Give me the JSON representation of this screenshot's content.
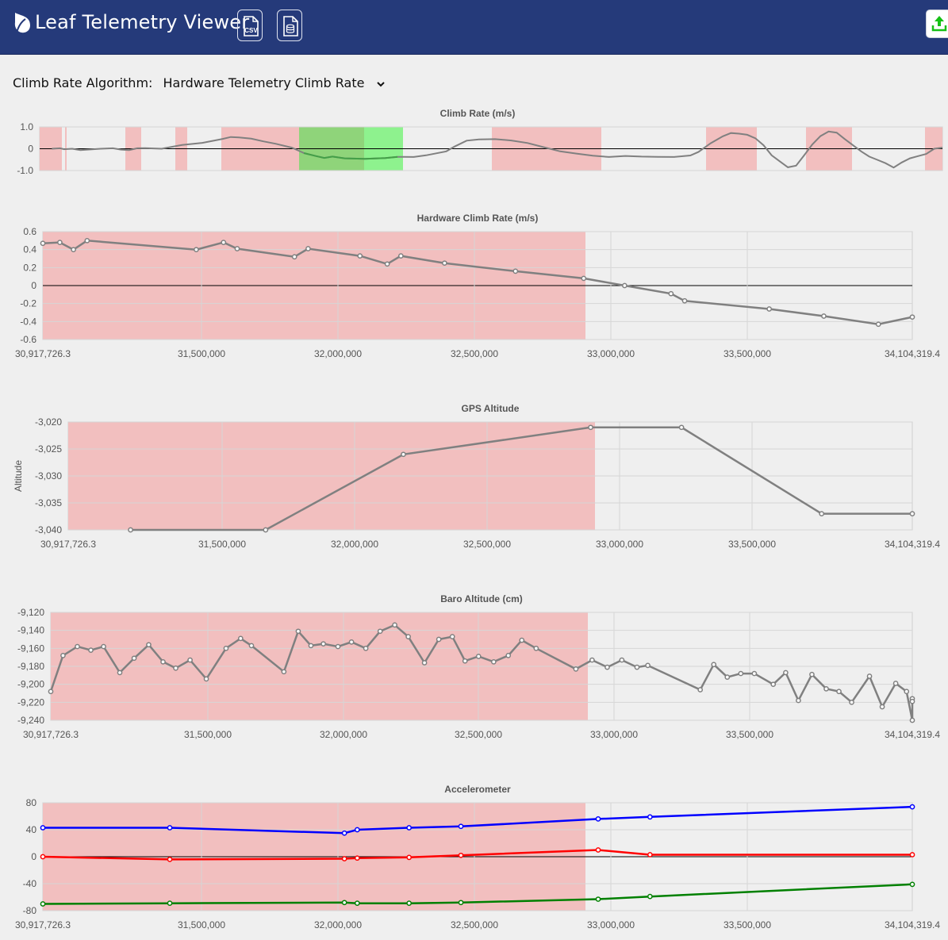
{
  "header": {
    "title": "Leaf Telemetry Viewer",
    "csv_icon": "csv-file-icon",
    "db_icon": "database-file-icon",
    "upload_icon": "upload-icon"
  },
  "algorithm": {
    "label": "Climb Rate Algorithm:",
    "selected": "Hardware Telemetry Climb Rate"
  },
  "colors": {
    "header": "#253a7a",
    "highlight": "#f2bfbf",
    "selection_dark": "#8fd47a",
    "selection_light": "#8ef28e",
    "line": "#808080"
  },
  "charts": [
    {
      "type": "line",
      "title": "Climb Rate (m/s)",
      "ylabel": "",
      "yticks": [
        "1.0",
        "0",
        "-1.0"
      ],
      "ylim": [
        -1.0,
        1.0
      ],
      "xticks": [],
      "series": [
        {
          "color": "#808080",
          "points": [
            [
              0.03,
              0.0
            ],
            [
              0.05,
              0.02
            ],
            [
              0.06,
              -0.02
            ],
            [
              0.08,
              0.0
            ],
            [
              0.1,
              -0.06
            ],
            [
              0.15,
              0.0
            ],
            [
              0.18,
              0.02
            ],
            [
              0.2,
              -0.04
            ],
            [
              0.22,
              -0.06
            ],
            [
              0.24,
              0.02
            ],
            [
              0.26,
              0.03
            ],
            [
              0.3,
              0.0
            ],
            [
              0.35,
              0.17
            ],
            [
              0.4,
              0.27
            ],
            [
              0.45,
              0.45
            ],
            [
              0.47,
              0.54
            ],
            [
              0.49,
              0.52
            ],
            [
              0.52,
              0.46
            ],
            [
              0.55,
              0.34
            ],
            [
              0.58,
              0.23
            ],
            [
              0.62,
              0.05
            ],
            [
              0.65,
              -0.2
            ],
            [
              0.68,
              -0.34
            ],
            [
              0.7,
              -0.42
            ],
            [
              0.72,
              -0.36
            ],
            [
              0.75,
              -0.44
            ],
            [
              0.8,
              -0.46
            ],
            [
              0.85,
              -0.43
            ],
            [
              0.88,
              -0.37
            ],
            [
              0.92,
              -0.38
            ],
            [
              0.95,
              -0.3
            ],
            [
              1.0,
              -0.12
            ],
            [
              1.02,
              0.1
            ],
            [
              1.05,
              0.37
            ],
            [
              1.08,
              0.43
            ],
            [
              1.12,
              0.44
            ],
            [
              1.16,
              0.38
            ],
            [
              1.2,
              0.26
            ],
            [
              1.24,
              0.07
            ],
            [
              1.28,
              -0.12
            ],
            [
              1.32,
              -0.22
            ],
            [
              1.36,
              -0.32
            ],
            [
              1.4,
              -0.38
            ],
            [
              1.44,
              -0.33
            ],
            [
              1.48,
              -0.36
            ],
            [
              1.52,
              -0.37
            ],
            [
              1.56,
              -0.38
            ],
            [
              1.6,
              -0.31
            ],
            [
              1.62,
              -0.15
            ],
            [
              1.65,
              0.25
            ],
            [
              1.68,
              0.57
            ],
            [
              1.7,
              0.72
            ],
            [
              1.72,
              0.69
            ],
            [
              1.74,
              0.64
            ],
            [
              1.76,
              0.48
            ],
            [
              1.78,
              0.16
            ],
            [
              1.8,
              -0.3
            ],
            [
              1.82,
              -0.58
            ],
            [
              1.84,
              -0.85
            ],
            [
              1.86,
              -0.78
            ],
            [
              1.88,
              -0.3
            ],
            [
              1.9,
              0.2
            ],
            [
              1.92,
              0.58
            ],
            [
              1.94,
              0.79
            ],
            [
              1.96,
              0.74
            ],
            [
              1.98,
              0.44
            ],
            [
              2.0,
              0.16
            ],
            [
              2.02,
              -0.12
            ],
            [
              2.04,
              -0.36
            ],
            [
              2.06,
              -0.51
            ],
            [
              2.08,
              -0.66
            ],
            [
              2.1,
              -0.86
            ],
            [
              2.12,
              -0.63
            ],
            [
              2.14,
              -0.44
            ],
            [
              2.16,
              -0.34
            ],
            [
              2.18,
              -0.24
            ],
            [
              2.2,
              0.0
            ],
            [
              2.22,
              0.05
            ]
          ]
        }
      ],
      "x_range": [
        0.0,
        2.22
      ]
    },
    {
      "type": "line",
      "title": "Hardware Climb Rate (m/s)",
      "ylabel": "",
      "yticks": [
        "0.6",
        "0.4",
        "0.2",
        "0",
        "-0.2",
        "-0.4",
        "-0.6"
      ],
      "ylim": [
        -0.6,
        0.6
      ],
      "xticks": [
        "30,917,726.3",
        "31,500,000",
        "32,000,000",
        "32,500,000",
        "33,000,000",
        "33,500,000",
        "34,104,319.4"
      ],
      "series": [
        {
          "color": "#808080",
          "points": [
            [
              30917726.3,
              0.47
            ],
            [
              30980000,
              0.48
            ],
            [
              31030000,
              0.4
            ],
            [
              31080000,
              0.5
            ],
            [
              31480000,
              0.4
            ],
            [
              31580000,
              0.48
            ],
            [
              31630000,
              0.41
            ],
            [
              31840000,
              0.32
            ],
            [
              31890000,
              0.41
            ],
            [
              32080000,
              0.33
            ],
            [
              32180000,
              0.24
            ],
            [
              32230000,
              0.33
            ],
            [
              32390000,
              0.25
            ],
            [
              32650000,
              0.16
            ],
            [
              32900000,
              0.08
            ],
            [
              33050000,
              0.0
            ],
            [
              33220000,
              -0.09
            ],
            [
              33270000,
              -0.17
            ],
            [
              33580000,
              -0.26
            ],
            [
              33780000,
              -0.34
            ],
            [
              33980000,
              -0.43
            ],
            [
              34104319.4,
              -0.35
            ]
          ]
        }
      ]
    },
    {
      "type": "line",
      "title": "GPS Altitude",
      "ylabel": "Altitude",
      "yticks": [
        "-3,020",
        "-3,025",
        "-3,030",
        "-3,035",
        "-3,040"
      ],
      "ylim": [
        -3040,
        -3020
      ],
      "xticks": [
        "30,917,726.3",
        "31,500,000",
        "32,000,000",
        "32,500,000",
        "33,000,000",
        "33,500,000",
        "34,104,319.4"
      ],
      "series": [
        {
          "color": "#808080",
          "points": [
            [
              31153000,
              -3040
            ],
            [
              31663000,
              -3040
            ],
            [
              32183000,
              -3026
            ],
            [
              32890000,
              -3021
            ],
            [
              33233000,
              -3021
            ],
            [
              33762000,
              -3037
            ],
            [
              34104319.4,
              -3037
            ]
          ]
        }
      ]
    },
    {
      "type": "line",
      "title": "Baro Altitude (cm)",
      "ylabel": "",
      "yticks": [
        "-9,120",
        "-9,140",
        "-9,160",
        "-9,180",
        "-9,200",
        "-9,220",
        "-9,240"
      ],
      "ylim": [
        -9240,
        -9120
      ],
      "xticks": [
        "30,917,726.3",
        "31,500,000",
        "32,000,000",
        "32,500,000",
        "33,000,000",
        "33,500,000",
        "34,104,319.4"
      ],
      "series": [
        {
          "color": "#808080",
          "points": [
            [
              30917726.3,
              -9208
            ],
            [
              30963000,
              -9168
            ],
            [
              31016000,
              -9158
            ],
            [
              31066000,
              -9162
            ],
            [
              31113000,
              -9158
            ],
            [
              31173000,
              -9187
            ],
            [
              31226000,
              -9171
            ],
            [
              31280000,
              -9156
            ],
            [
              31333000,
              -9175
            ],
            [
              31380000,
              -9182
            ],
            [
              31433000,
              -9173
            ],
            [
              31493000,
              -9194
            ],
            [
              31566000,
              -9160
            ],
            [
              31620000,
              -9149
            ],
            [
              31660000,
              -9157
            ],
            [
              31780000,
              -9186
            ],
            [
              31833000,
              -9141
            ],
            [
              31880000,
              -9157
            ],
            [
              31926000,
              -9155
            ],
            [
              31980000,
              -9158
            ],
            [
              32030000,
              -9153
            ],
            [
              32083000,
              -9160
            ],
            [
              32136000,
              -9141
            ],
            [
              32190000,
              -9134
            ],
            [
              32240000,
              -9147
            ],
            [
              32300000,
              -9176
            ],
            [
              32353000,
              -9150
            ],
            [
              32403000,
              -9147
            ],
            [
              32450000,
              -9174
            ],
            [
              32500000,
              -9169
            ],
            [
              32556000,
              -9175
            ],
            [
              32610000,
              -9168
            ],
            [
              32660000,
              -9151
            ],
            [
              32713000,
              -9160
            ],
            [
              32860000,
              -9183
            ],
            [
              32920000,
              -9173
            ],
            [
              32976000,
              -9181
            ],
            [
              33030000,
              -9173
            ],
            [
              33086000,
              -9181
            ],
            [
              33126000,
              -9179
            ],
            [
              33320000,
              -9206
            ],
            [
              33370000,
              -9178
            ],
            [
              33420000,
              -9192
            ],
            [
              33470000,
              -9188
            ],
            [
              33520000,
              -9188
            ],
            [
              33590000,
              -9200
            ],
            [
              33636000,
              -9187
            ],
            [
              33683000,
              -9218
            ],
            [
              33733000,
              -9189
            ],
            [
              33786000,
              -9205
            ],
            [
              33833000,
              -9208
            ],
            [
              33880000,
              -9220
            ],
            [
              33946000,
              -9191
            ],
            [
              33993000,
              -9225
            ],
            [
              34043000,
              -9199
            ],
            [
              34083000,
              -9208
            ],
            [
              34130000,
              -9240
            ],
            [
              34180000,
              -9216
            ],
            [
              34220000,
              -9219
            ]
          ]
        }
      ]
    },
    {
      "type": "line",
      "title": "Accelerometer",
      "ylabel": "",
      "yticks": [
        "80",
        "40",
        "0",
        "-40",
        "-80"
      ],
      "ylim": [
        -80,
        80
      ],
      "xticks": [
        "30,917,726.3",
        "31,500,000",
        "32,000,000",
        "32,500,000",
        "33,000,000",
        "33,500,000",
        "34,104,319.4"
      ],
      "series": [
        {
          "color": "#0000ff",
          "points": [
            [
              30917726.3,
              43
            ],
            [
              31383000,
              43
            ],
            [
              32023000,
              35
            ],
            [
              32070000,
              40
            ],
            [
              32260000,
              43
            ],
            [
              32450000,
              45
            ],
            [
              32953000,
              56
            ],
            [
              33143000,
              59
            ],
            [
              34104319.4,
              74
            ]
          ]
        },
        {
          "color": "#ff0000",
          "points": [
            [
              30917726.3,
              0
            ],
            [
              31383000,
              -4
            ],
            [
              32023000,
              -3
            ],
            [
              32070000,
              -2
            ],
            [
              32260000,
              -1
            ],
            [
              32450000,
              2
            ],
            [
              32953000,
              10
            ],
            [
              33143000,
              3
            ],
            [
              34104319.4,
              3
            ]
          ]
        },
        {
          "color": "#008000",
          "points": [
            [
              30917726.3,
              -70
            ],
            [
              31383000,
              -69
            ],
            [
              32023000,
              -68
            ],
            [
              32070000,
              -69
            ],
            [
              32260000,
              -69
            ],
            [
              32450000,
              -68
            ],
            [
              32953000,
              -63
            ],
            [
              33143000,
              -59
            ],
            [
              34104319.4,
              -41
            ]
          ]
        }
      ]
    }
  ]
}
